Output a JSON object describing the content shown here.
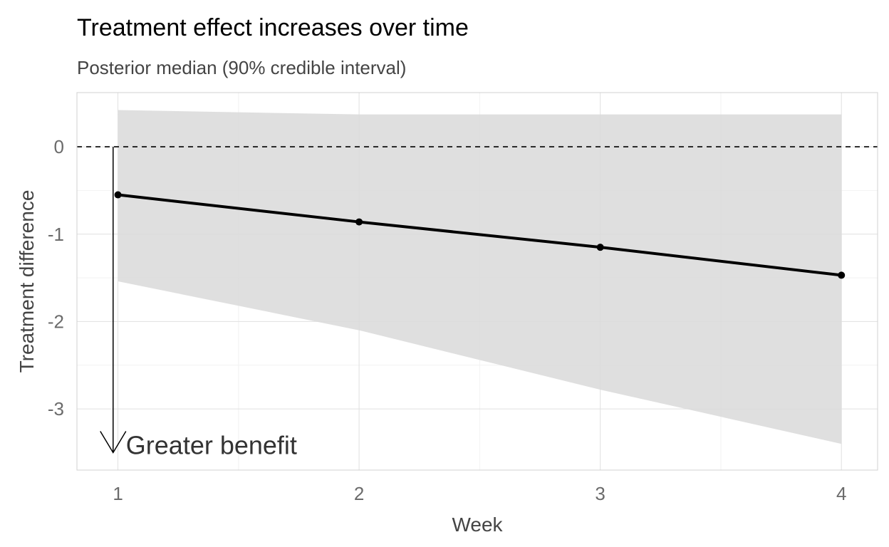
{
  "chart_data": {
    "type": "line",
    "title": "Treatment effect increases over time",
    "subtitle": "Posterior median (90% credible interval)",
    "xlabel": "Week",
    "ylabel": "Treatment difference",
    "x": [
      1,
      2,
      3,
      4
    ],
    "x_ticks": [
      "1",
      "2",
      "3",
      "4"
    ],
    "y_ticks": [
      "0",
      "-1",
      "-2",
      "-3"
    ],
    "xlim": [
      0.83,
      4.15
    ],
    "ylim": [
      -3.7,
      0.62
    ],
    "grid": true,
    "series": [
      {
        "values": [
          -0.55,
          -0.86,
          -1.15,
          -1.47
        ],
        "lower": [
          -1.54,
          -2.1,
          -2.78,
          -3.4
        ],
        "upper": [
          0.42,
          0.37,
          0.37,
          0.37
        ]
      }
    ],
    "reference_line": {
      "y": 0,
      "style": "dashed"
    },
    "annotation": {
      "text": "Greater benefit",
      "arrow_from": [
        0.98,
        0
      ],
      "arrow_to": [
        0.98,
        -3.5
      ]
    },
    "colors": {
      "band": "#d9d9d9",
      "line": "#000000",
      "grid": "#e0e0e0"
    }
  }
}
